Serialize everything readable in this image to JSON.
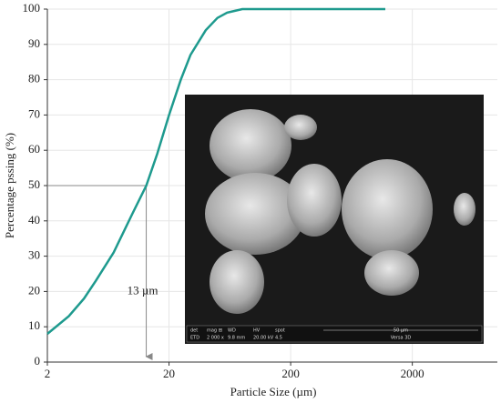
{
  "chart_data": {
    "type": "line",
    "x_label": "Particle Size (µm)",
    "y_label": "Percentage pssing (%)",
    "xscale": "log",
    "xlim": [
      2,
      10000
    ],
    "xticks": [
      2,
      20,
      200,
      2000
    ],
    "ylim": [
      0,
      100
    ],
    "yticks": [
      0,
      10,
      20,
      30,
      40,
      50,
      60,
      70,
      80,
      90,
      100
    ],
    "grid": true,
    "color": "#1e9a8e",
    "x": [
      2,
      3,
      4,
      5,
      7,
      10,
      13,
      16,
      20,
      25,
      30,
      40,
      50,
      60,
      80,
      100,
      200,
      1000,
      1200
    ],
    "values": [
      8,
      13,
      18,
      23,
      31,
      42,
      50,
      59,
      70,
      80,
      87,
      94,
      97.5,
      99,
      100,
      100,
      100,
      100,
      100
    ],
    "annotation": {
      "text": "13 µm",
      "x": 13,
      "y": 50
    },
    "inset_labels": [
      "det",
      "mag ⊞",
      "WD",
      "HV",
      "spot",
      "ETD",
      "2 000 x",
      "9.8 mm",
      "20.00 kV",
      "4.5",
      "50 µm",
      "Versa 3D"
    ]
  }
}
